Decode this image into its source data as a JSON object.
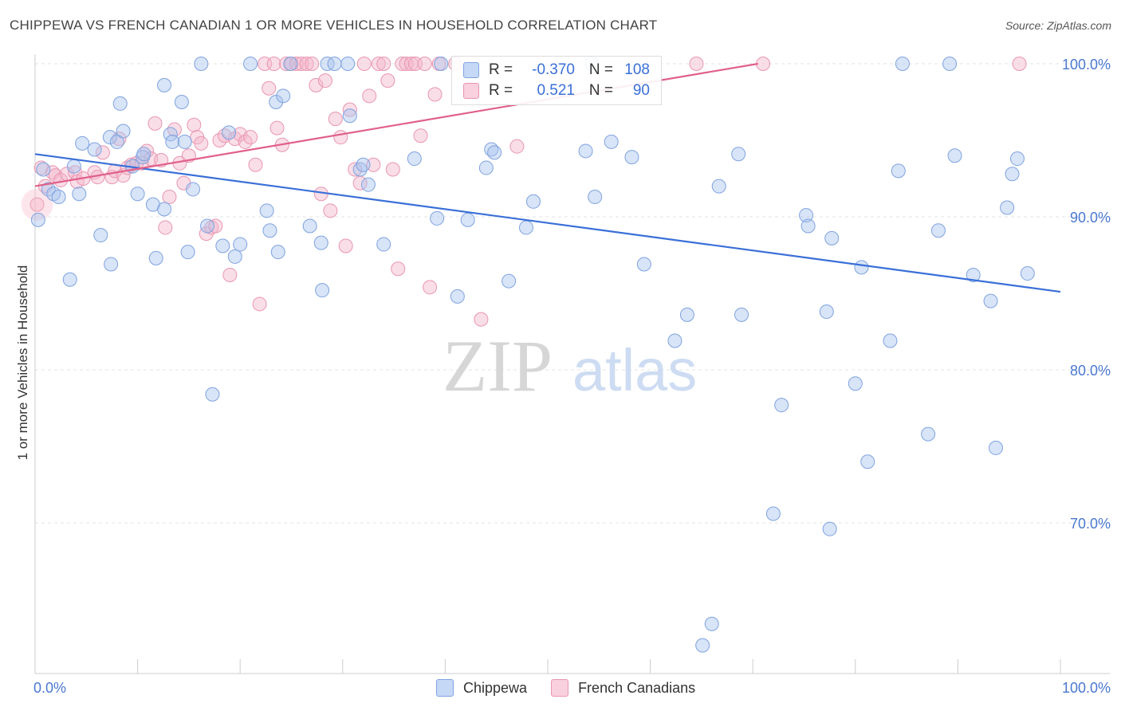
{
  "title": "CHIPPEWA VS FRENCH CANADIAN 1 OR MORE VEHICLES IN HOUSEHOLD CORRELATION CHART",
  "source": "Source: ZipAtlas.com",
  "watermark": {
    "zip": "ZIP",
    "atlas": "atlas"
  },
  "legend": {
    "r_label": "R =",
    "n_label": "N =",
    "rows": [
      {
        "r": "-0.370",
        "n": "108",
        "color": "#a9c4ee"
      },
      {
        "r": "0.521",
        "n": "90",
        "color": "#f5b6c9"
      }
    ]
  },
  "bottom_legend": [
    {
      "label": "Chippewa",
      "color": "#a9c4ee"
    },
    {
      "label": "French Canadians",
      "color": "#f5b6c9"
    }
  ],
  "colors": {
    "blue": "#3a6fd8",
    "pink": "#e0608a",
    "blue_fill": "#a9c4ee",
    "pink_fill": "#f5b6c9"
  },
  "chart_data": {
    "type": "scatter",
    "title": "CHIPPEWA VS FRENCH CANADIAN 1 OR MORE VEHICLES IN HOUSEHOLD CORRELATION CHART",
    "xlabel": "",
    "ylabel": "1 or more Vehicles in Household",
    "xlim": [
      0,
      100
    ],
    "ylim": [
      60.5,
      102
    ],
    "x_tick_labels": [
      "0.0%",
      "100.0%"
    ],
    "y_ticks": [
      70,
      80,
      90,
      100
    ],
    "y_tick_labels": [
      "70.0%",
      "80.0%",
      "90.0%",
      "100.0%"
    ],
    "grid": true,
    "series": [
      {
        "name": "Chippewa",
        "trend": {
          "x": [
            0,
            100
          ],
          "y": [
            94.1,
            85.1
          ]
        },
        "points": [
          [
            0.3,
            89.8
          ],
          [
            0.8,
            93.1
          ],
          [
            1.3,
            91.8
          ],
          [
            1.8,
            91.5
          ],
          [
            2.3,
            91.3
          ],
          [
            3.4,
            85.9
          ],
          [
            3.8,
            93.3
          ],
          [
            4.3,
            91.5
          ],
          [
            4.6,
            94.8
          ],
          [
            5.8,
            94.4
          ],
          [
            6.4,
            88.8
          ],
          [
            7.3,
            95.2
          ],
          [
            7.4,
            86.9
          ],
          [
            8.0,
            94.9
          ],
          [
            8.3,
            97.4
          ],
          [
            8.6,
            95.6
          ],
          [
            9.5,
            93.3
          ],
          [
            10.0,
            91.5
          ],
          [
            10.5,
            93.9
          ],
          [
            10.6,
            94.1
          ],
          [
            11.5,
            90.8
          ],
          [
            11.8,
            87.3
          ],
          [
            12.6,
            98.6
          ],
          [
            12.6,
            90.5
          ],
          [
            13.2,
            95.4
          ],
          [
            13.4,
            94.9
          ],
          [
            14.3,
            97.5
          ],
          [
            14.6,
            94.9
          ],
          [
            14.9,
            87.7
          ],
          [
            15.4,
            91.8
          ],
          [
            16.2,
            100.0
          ],
          [
            16.8,
            89.4
          ],
          [
            17.3,
            78.4
          ],
          [
            18.3,
            88.1
          ],
          [
            18.9,
            95.5
          ],
          [
            19.5,
            87.4
          ],
          [
            20.0,
            88.2
          ],
          [
            21.0,
            100.0
          ],
          [
            22.6,
            90.4
          ],
          [
            22.9,
            89.1
          ],
          [
            23.5,
            97.5
          ],
          [
            23.7,
            87.7
          ],
          [
            24.2,
            97.9
          ],
          [
            24.9,
            100.0
          ],
          [
            26.8,
            89.4
          ],
          [
            27.9,
            88.3
          ],
          [
            28.0,
            85.2
          ],
          [
            28.5,
            100.0
          ],
          [
            29.2,
            100.0
          ],
          [
            30.5,
            100.0
          ],
          [
            30.7,
            96.6
          ],
          [
            31.7,
            93.1
          ],
          [
            32.0,
            93.4
          ],
          [
            32.5,
            92.1
          ],
          [
            34.0,
            88.2
          ],
          [
            37.0,
            93.8
          ],
          [
            39.2,
            89.9
          ],
          [
            39.6,
            100.0
          ],
          [
            41.2,
            84.8
          ],
          [
            42.2,
            89.8
          ],
          [
            44.0,
            93.2
          ],
          [
            44.5,
            94.4
          ],
          [
            44.8,
            94.2
          ],
          [
            46.2,
            85.8
          ],
          [
            47.9,
            89.3
          ],
          [
            48.6,
            91.0
          ],
          [
            53.7,
            94.3
          ],
          [
            54.3,
            100.0
          ],
          [
            54.6,
            91.3
          ],
          [
            56.2,
            94.9
          ],
          [
            58.2,
            93.9
          ],
          [
            59.4,
            86.9
          ],
          [
            62.4,
            81.9
          ],
          [
            63.6,
            83.6
          ],
          [
            65.1,
            62.0
          ],
          [
            66.0,
            63.4
          ],
          [
            66.7,
            92.0
          ],
          [
            68.6,
            94.1
          ],
          [
            68.9,
            83.6
          ],
          [
            72.0,
            70.6
          ],
          [
            72.8,
            77.7
          ],
          [
            75.2,
            90.1
          ],
          [
            75.4,
            89.4
          ],
          [
            77.2,
            83.8
          ],
          [
            77.5,
            69.6
          ],
          [
            77.7,
            88.6
          ],
          [
            80.0,
            79.1
          ],
          [
            80.6,
            86.7
          ],
          [
            81.2,
            74.0
          ],
          [
            83.4,
            81.9
          ],
          [
            84.2,
            93.0
          ],
          [
            84.6,
            100.0
          ],
          [
            87.1,
            75.8
          ],
          [
            88.1,
            89.1
          ],
          [
            89.2,
            100.0
          ],
          [
            89.7,
            94.0
          ],
          [
            91.5,
            86.2
          ],
          [
            93.7,
            74.9
          ],
          [
            93.2,
            84.5
          ],
          [
            94.8,
            90.6
          ],
          [
            95.3,
            92.8
          ],
          [
            95.8,
            93.8
          ],
          [
            96.8,
            86.3
          ]
        ]
      },
      {
        "name": "French Canadians",
        "trend": {
          "x": [
            0,
            70.5
          ],
          "y": [
            92.0,
            100.0
          ]
        },
        "points": [
          [
            0.2,
            90.8
          ],
          [
            0.6,
            93.2
          ],
          [
            1.0,
            92.0
          ],
          [
            1.7,
            92.9
          ],
          [
            2.0,
            92.7
          ],
          [
            2.5,
            92.4
          ],
          [
            3.1,
            92.8
          ],
          [
            3.9,
            92.9
          ],
          [
            4.1,
            92.3
          ],
          [
            4.7,
            92.5
          ],
          [
            5.8,
            92.9
          ],
          [
            6.1,
            92.6
          ],
          [
            6.6,
            94.2
          ],
          [
            7.5,
            92.6
          ],
          [
            7.8,
            93.0
          ],
          [
            8.2,
            95.1
          ],
          [
            8.6,
            92.7
          ],
          [
            9.0,
            93.2
          ],
          [
            9.4,
            93.4
          ],
          [
            9.9,
            93.5
          ],
          [
            10.4,
            93.5
          ],
          [
            10.9,
            94.3
          ],
          [
            11.3,
            93.8
          ],
          [
            11.7,
            96.1
          ],
          [
            12.3,
            93.7
          ],
          [
            12.7,
            89.3
          ],
          [
            13.1,
            91.3
          ],
          [
            13.6,
            95.7
          ],
          [
            14.1,
            93.5
          ],
          [
            14.5,
            92.2
          ],
          [
            15.0,
            94.0
          ],
          [
            15.5,
            96.0
          ],
          [
            15.8,
            95.2
          ],
          [
            16.2,
            94.8
          ],
          [
            16.7,
            88.9
          ],
          [
            17.2,
            89.3
          ],
          [
            17.6,
            89.4
          ],
          [
            18.0,
            95.0
          ],
          [
            18.5,
            95.3
          ],
          [
            19.0,
            86.2
          ],
          [
            19.5,
            95.1
          ],
          [
            20.0,
            95.4
          ],
          [
            20.5,
            94.9
          ],
          [
            21.0,
            95.2
          ],
          [
            21.5,
            93.4
          ],
          [
            21.9,
            84.3
          ],
          [
            22.4,
            100.0
          ],
          [
            22.8,
            98.4
          ],
          [
            23.3,
            100.0
          ],
          [
            23.6,
            95.8
          ],
          [
            24.1,
            94.7
          ],
          [
            24.5,
            100.0
          ],
          [
            25.0,
            100.0
          ],
          [
            25.5,
            100.0
          ],
          [
            26.0,
            100.0
          ],
          [
            26.5,
            100.0
          ],
          [
            27.0,
            100.0
          ],
          [
            27.4,
            98.6
          ],
          [
            27.9,
            91.5
          ],
          [
            28.3,
            98.9
          ],
          [
            28.8,
            90.4
          ],
          [
            29.3,
            96.4
          ],
          [
            29.8,
            95.2
          ],
          [
            30.3,
            88.1
          ],
          [
            30.7,
            97.0
          ],
          [
            31.2,
            93.1
          ],
          [
            31.7,
            92.2
          ],
          [
            32.1,
            100.0
          ],
          [
            32.6,
            97.9
          ],
          [
            33.0,
            93.4
          ],
          [
            33.5,
            100.0
          ],
          [
            34.0,
            100.0
          ],
          [
            34.4,
            98.9
          ],
          [
            34.9,
            93.1
          ],
          [
            35.4,
            86.6
          ],
          [
            35.8,
            100.0
          ],
          [
            36.2,
            100.0
          ],
          [
            36.7,
            100.0
          ],
          [
            37.1,
            100.0
          ],
          [
            37.6,
            95.3
          ],
          [
            38.0,
            100.0
          ],
          [
            38.5,
            85.4
          ],
          [
            39.0,
            98.0
          ],
          [
            39.4,
            100.0
          ],
          [
            41.0,
            100.0
          ],
          [
            43.5,
            83.3
          ],
          [
            47.0,
            94.6
          ],
          [
            64.5,
            100.0
          ],
          [
            71.0,
            100.0
          ],
          [
            96.0,
            100.0
          ]
        ]
      }
    ]
  }
}
